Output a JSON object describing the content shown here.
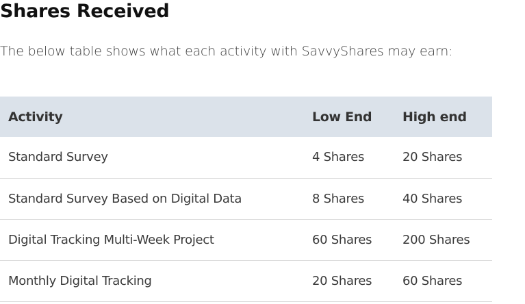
{
  "page": {
    "title": "Shares Received",
    "intro": "The below table shows what each activity with SavvyShares may earn:"
  },
  "table": {
    "headers": {
      "activity": "Activity",
      "low": "Low End",
      "high": "High end"
    },
    "rows": [
      {
        "activity": "Standard Survey",
        "low": "4 Shares",
        "high": "20 Shares"
      },
      {
        "activity": "Standard Survey Based on Digital Data",
        "low": "8 Shares",
        "high": "40 Shares"
      },
      {
        "activity": "Digital Tracking Multi-Week Project",
        "low": "60 Shares",
        "high": "200 Shares"
      },
      {
        "activity": "Monthly Digital Tracking",
        "low": "20 Shares",
        "high": "60 Shares"
      }
    ]
  },
  "colors": {
    "header_background": "#dbe2ea",
    "row_divider": "#dcdcdc",
    "title_text": "#111111",
    "body_text": "#3a3a3a"
  }
}
